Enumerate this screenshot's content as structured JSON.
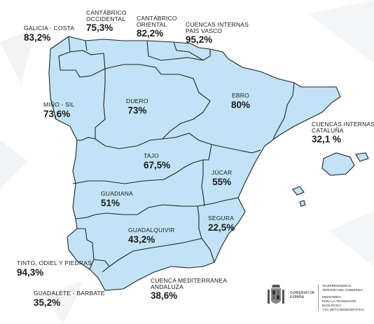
{
  "colors": {
    "region_fill": "#c2e3f6",
    "region_stroke": "#222222",
    "text": "#1a1a1a"
  },
  "regions": [
    {
      "name": "GALICIA - COSTA",
      "value": "83,2%"
    },
    {
      "name": "CANTÁBRICO OCCIDENTAL",
      "name_lines": [
        "CANTÁBRICO",
        "OCCIDENTAL"
      ],
      "value": "75,3%"
    },
    {
      "name": "CANTÁBRICO ORIENTAL",
      "name_lines": [
        "CANTÁBRICO",
        "ORIENTAL"
      ],
      "value": "82,2%"
    },
    {
      "name": "CUENCAS INTERNAS PAÍS VASCO",
      "name_lines": [
        "CUENCAS INTERNAS",
        "PAÍS VASCO"
      ],
      "value": "95,2%"
    },
    {
      "name": "MIÑO - SIL",
      "value": "73,6%"
    },
    {
      "name": "DUERO",
      "value": "73%"
    },
    {
      "name": "EBRO",
      "value": "80%"
    },
    {
      "name": "CUENCAS INTERNAS CATALUÑA",
      "name_lines": [
        "CUENCAS INTERNAS",
        "CATALUÑA"
      ],
      "value": "32,1 %"
    },
    {
      "name": "TAJO",
      "value": "67,5%"
    },
    {
      "name": "JÚCAR",
      "value": "55%"
    },
    {
      "name": "GUADIANA",
      "value": "51%"
    },
    {
      "name": "SEGURA",
      "value": "22,5%"
    },
    {
      "name": "GUADALQUIVIR",
      "value": "43,2%"
    },
    {
      "name": "TINTO, ODIEL Y PIEDRAS",
      "value": "94,3%"
    },
    {
      "name": "GUADALETE - BARBATE",
      "value": "35,2%"
    },
    {
      "name": "CUENCA MEDITERRÁNEA ANDALUZA",
      "name_lines": [
        "CUENCA MEDITERRÁNEA",
        "ANDALUZA"
      ],
      "value": "38,6%"
    }
  ],
  "footer": {
    "gobierno": "GOBIERNO DE ESPAÑA",
    "vice_lines": [
      "VICEPRESIDENCIA",
      "TERCERA DEL GOBIERNO"
    ],
    "ministry_lines": [
      "MINISTERIO",
      "PARA LA TRANSICIÓN ECOLÓGICA",
      "Y EL RETO DEMOGRÁFICO"
    ]
  }
}
